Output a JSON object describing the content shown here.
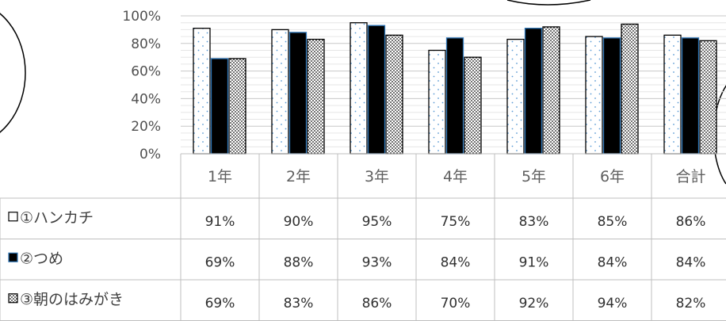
{
  "chart_data": {
    "type": "bar",
    "categories": [
      "1年",
      "2年",
      "3年",
      "4年",
      "5年",
      "6年",
      "合計"
    ],
    "yticks": [
      "0%",
      "20%",
      "40%",
      "60%",
      "80%",
      "100%"
    ],
    "ylim": [
      0,
      100
    ],
    "series": [
      {
        "name": "①ハンカチ",
        "values": [
          91,
          90,
          95,
          75,
          83,
          85,
          86
        ],
        "labels": [
          "91%",
          "90%",
          "95%",
          "75%",
          "83%",
          "85%",
          "86%"
        ],
        "pattern": "dots-sparse"
      },
      {
        "name": "②つめ",
        "values": [
          69,
          88,
          93,
          84,
          91,
          84,
          84
        ],
        "labels": [
          "69%",
          "88%",
          "93%",
          "84%",
          "91%",
          "84%",
          "84%"
        ],
        "pattern": "solid-black"
      },
      {
        "name": "③朝のはみがき",
        "values": [
          69,
          83,
          86,
          70,
          92,
          94,
          82
        ],
        "labels": [
          "69%",
          "83%",
          "86%",
          "70%",
          "92%",
          "94%",
          "82%"
        ],
        "pattern": "dots-dense"
      }
    ],
    "grid": true,
    "legend": "data-table"
  }
}
